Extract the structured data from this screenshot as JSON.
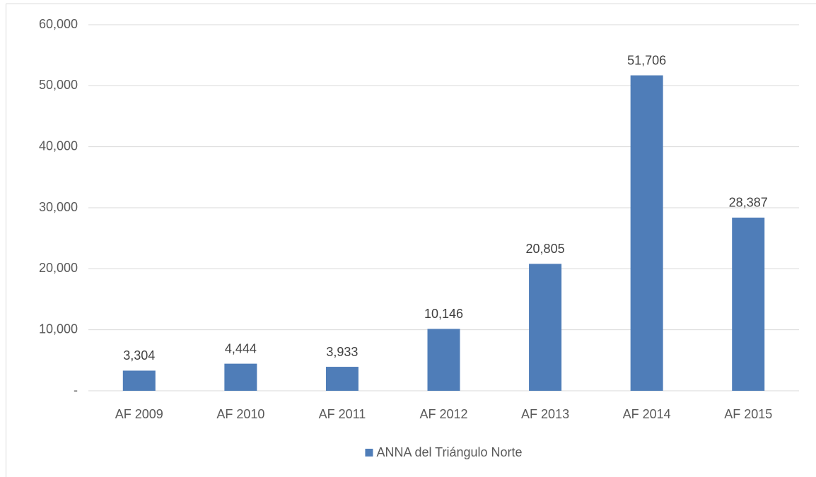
{
  "chart_data": {
    "type": "bar",
    "categories": [
      "AF 2009",
      "AF 2010",
      "AF 2011",
      "AF 2012",
      "AF 2013",
      "AF 2014",
      "AF 2015"
    ],
    "series": [
      {
        "name": "ANNA del Triángulo Norte",
        "color": "#4f7db8",
        "values": [
          3304,
          4444,
          3933,
          10146,
          20805,
          51706,
          28387
        ],
        "value_labels": [
          "3,304",
          "4,444",
          "3,933",
          "10,146",
          "20,805",
          "51,706",
          "28,387"
        ]
      }
    ],
    "ylim": [
      0,
      60000
    ],
    "yticks": [
      {
        "value": 0,
        "label": "-"
      },
      {
        "value": 10000,
        "label": "10,000"
      },
      {
        "value": 20000,
        "label": "20,000"
      },
      {
        "value": 30000,
        "label": "30,000"
      },
      {
        "value": 40000,
        "label": "40,000"
      },
      {
        "value": 50000,
        "label": "50,000"
      },
      {
        "value": 60000,
        "label": "60,000"
      }
    ],
    "grid": true,
    "legend": "bottom"
  }
}
